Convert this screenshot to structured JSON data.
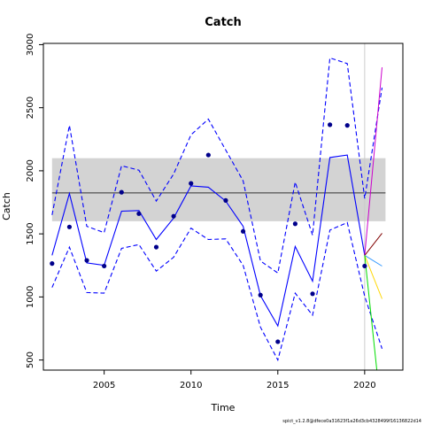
{
  "chart_data": {
    "type": "line",
    "title": "Catch",
    "xlabel": "Time",
    "ylabel": "Catch",
    "xlim": [
      2001.5,
      2022.2
    ],
    "ylim": [
      420,
      3010
    ],
    "xticks": [
      2005,
      2010,
      2015,
      2020
    ],
    "yticks": [
      500,
      1000,
      1500,
      2000,
      2500,
      3000
    ],
    "reference_band": {
      "low": 1600,
      "high": 2100,
      "color": "#d3d3d3"
    },
    "reference_line": {
      "y": 1825,
      "color": "#333333"
    },
    "vertical_line": {
      "x": 2020,
      "color": "#cccccc"
    },
    "observed_points": {
      "color": "#00008b",
      "x": [
        2002,
        2003,
        2004,
        2005,
        2006,
        2007,
        2008,
        2009,
        2010,
        2011,
        2012,
        2013,
        2014,
        2015,
        2016,
        2017,
        2018,
        2019,
        2020
      ],
      "y": [
        1265,
        1555,
        1290,
        1245,
        1830,
        1660,
        1395,
        1640,
        1900,
        2125,
        1765,
        1520,
        1015,
        645,
        1580,
        1025,
        2365,
        2360,
        1245
      ]
    },
    "series": [
      {
        "role": "fit",
        "color": "#0000ff",
        "style": "solid",
        "x": [
          2002,
          2003,
          2004,
          2005,
          2006,
          2007,
          2008,
          2009,
          2010,
          2011,
          2012,
          2013,
          2014,
          2015,
          2016,
          2017,
          2018,
          2019,
          2020
        ],
        "y": [
          1330,
          1820,
          1270,
          1250,
          1680,
          1685,
          1455,
          1625,
          1880,
          1870,
          1760,
          1560,
          1010,
          770,
          1400,
          1125,
          2105,
          2125,
          1330
        ]
      },
      {
        "role": "upper",
        "color": "#0000ff",
        "style": "dashed",
        "x": [
          2002,
          2003,
          2004,
          2005,
          2006,
          2007,
          2008,
          2009,
          2010,
          2011,
          2012,
          2013,
          2014,
          2015,
          2016,
          2017,
          2018,
          2019,
          2020,
          2021
        ],
        "y": [
          1650,
          2360,
          1560,
          1510,
          2040,
          2005,
          1760,
          1975,
          2285,
          2410,
          2165,
          1920,
          1285,
          1190,
          1910,
          1490,
          2895,
          2850,
          1780,
          2660
        ]
      },
      {
        "role": "lower",
        "color": "#0000ff",
        "style": "dashed",
        "x": [
          2002,
          2003,
          2004,
          2005,
          2006,
          2007,
          2008,
          2009,
          2010,
          2011,
          2012,
          2013,
          2014,
          2015,
          2016,
          2017,
          2018,
          2019,
          2020,
          2021
        ],
        "y": [
          1075,
          1395,
          1035,
          1030,
          1385,
          1415,
          1205,
          1315,
          1545,
          1455,
          1460,
          1250,
          760,
          500,
          1030,
          855,
          1530,
          1590,
          1005,
          590
        ]
      }
    ],
    "projections": [
      {
        "color": "#cc00cc",
        "x": [
          2020,
          2021
        ],
        "y": [
          1330,
          2820
        ]
      },
      {
        "color": "#800000",
        "x": [
          2020,
          2021
        ],
        "y": [
          1330,
          1505
        ]
      },
      {
        "color": "#3399ff",
        "x": [
          2020,
          2021
        ],
        "y": [
          1330,
          1245
        ]
      },
      {
        "color": "#ffd700",
        "x": [
          2020,
          2021
        ],
        "y": [
          1330,
          985
        ]
      },
      {
        "color": "#00dd00",
        "x": [
          2020,
          2020.7
        ],
        "y": [
          1330,
          420
        ]
      }
    ]
  },
  "footer": "spict_v1.2.8@dfece0a31623f1a26d3cb4328499f16136822d14"
}
